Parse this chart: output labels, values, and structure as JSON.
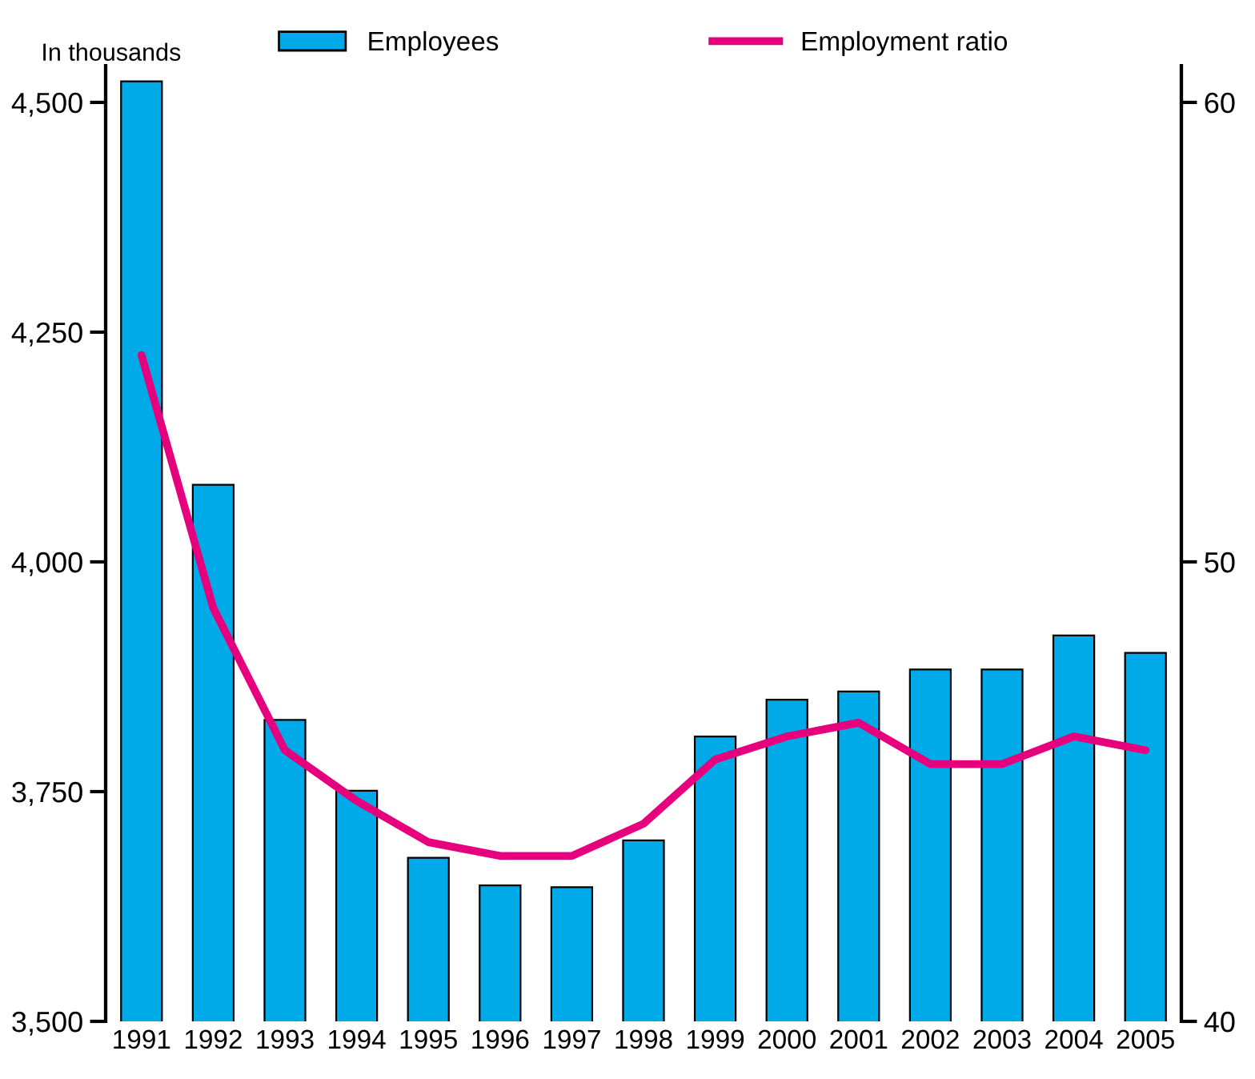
{
  "chart_data": {
    "type": "bar",
    "ylabel": "In thousands",
    "categories": [
      "1991",
      "1992",
      "1993",
      "1994",
      "1995",
      "1996",
      "1997",
      "1998",
      "1999",
      "2000",
      "2001",
      "2002",
      "2003",
      "2004",
      "2005"
    ],
    "series": [
      {
        "name": "Employees",
        "color": "#00aae8",
        "values": [
          4523,
          4084,
          3828,
          3751,
          3678,
          3648,
          3646,
          3697,
          3810,
          3850,
          3859,
          3883,
          3883,
          3920,
          3901
        ]
      },
      {
        "name": "Employment ratio",
        "type": "line",
        "axis": "y2",
        "color": "#e6007e",
        "values": [
          54.5,
          49.0,
          45.9,
          44.8,
          43.9,
          43.6,
          43.6,
          44.3,
          45.7,
          46.2,
          46.5,
          45.6,
          45.6,
          46.2,
          45.9
        ]
      }
    ],
    "ylim": [
      3500,
      4540
    ],
    "yticks": [
      {
        "value": 3500,
        "label": "3,500"
      },
      {
        "value": 3750,
        "label": "3,750"
      },
      {
        "value": 4000,
        "label": "4,000"
      },
      {
        "value": 4250,
        "label": "4,250"
      },
      {
        "value": 4500,
        "label": "4,500"
      }
    ],
    "y2lim": [
      40,
      60.8
    ],
    "y2ticks": [
      40,
      50,
      60
    ],
    "legend": "top",
    "grid": false,
    "marker": "none",
    "line_style": "solid"
  }
}
